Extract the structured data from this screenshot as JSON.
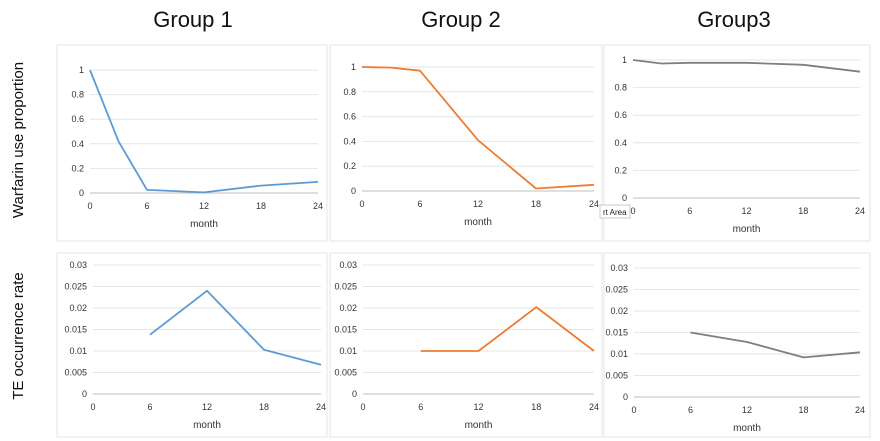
{
  "figure": {
    "group_titles": [
      "Group 1",
      "Group 2",
      "Group3"
    ],
    "row_labels": [
      "Warfarin use proportion",
      "TE occurrence rate"
    ],
    "tooltip": "rt Area"
  },
  "colors": {
    "group1": "#5b9bd5",
    "group2": "#ed7d31",
    "group3": "#7f7f7f"
  },
  "chart_data": [
    {
      "type": "line",
      "group": "Group 1",
      "metric": "Warfarin use proportion",
      "color": "#5b9bd5",
      "x": [
        0,
        3,
        6,
        12,
        18,
        24
      ],
      "y": [
        1.0,
        0.42,
        0.025,
        0.005,
        0.06,
        0.09
      ],
      "xticks": [
        0,
        6,
        12,
        18,
        24
      ],
      "xlabel": "month",
      "ylim": [
        0,
        1
      ],
      "yticks": [
        0,
        0.2,
        0.4,
        0.6,
        0.8,
        1
      ],
      "ytick_labels": [
        "0",
        "0.2",
        "0.4",
        "0.6",
        "0.8",
        "1"
      ]
    },
    {
      "type": "line",
      "group": "Group 2",
      "metric": "Warfarin use proportion",
      "color": "#ed7d31",
      "x": [
        0,
        3,
        6,
        12,
        18,
        24
      ],
      "y": [
        1.0,
        0.995,
        0.97,
        0.41,
        0.02,
        0.05
      ],
      "xticks": [
        0,
        6,
        12,
        18,
        24
      ],
      "xlabel": "month",
      "ylim": [
        0,
        1
      ],
      "yticks": [
        0,
        0.2,
        0.4,
        0.6,
        0.8,
        1
      ],
      "ytick_labels": [
        "0",
        "0.2",
        "0.4",
        "0.6",
        "0.8",
        "1"
      ]
    },
    {
      "type": "line",
      "group": "Group3",
      "metric": "Warfarin use proportion",
      "color": "#7f7f7f",
      "x": [
        0,
        3,
        6,
        12,
        18,
        24
      ],
      "y": [
        1.0,
        0.975,
        0.98,
        0.98,
        0.965,
        0.915
      ],
      "xticks": [
        0,
        6,
        12,
        18,
        24
      ],
      "xlabel": "month",
      "ylim": [
        0,
        1
      ],
      "yticks": [
        0,
        0.2,
        0.4,
        0.6,
        0.8,
        1
      ],
      "ytick_labels": [
        "0",
        "0.2",
        "0.4",
        "0.6",
        "0.8",
        "1"
      ]
    },
    {
      "type": "line",
      "group": "Group 1",
      "metric": "TE occurrence rate",
      "color": "#5b9bd5",
      "x": [
        6,
        12,
        18,
        24
      ],
      "y": [
        0.0138,
        0.024,
        0.0103,
        0.0068
      ],
      "xticks": [
        0,
        6,
        12,
        18,
        24
      ],
      "xlabel": "month",
      "ylim": [
        0,
        0.03
      ],
      "yticks": [
        0,
        0.005,
        0.01,
        0.015,
        0.02,
        0.025,
        0.03
      ],
      "ytick_labels": [
        "0",
        "0.005",
        "0.01",
        "0.015",
        "0.02",
        "0.025",
        "0.03"
      ]
    },
    {
      "type": "line",
      "group": "Group 2",
      "metric": "TE occurrence rate",
      "color": "#ed7d31",
      "x": [
        6,
        12,
        18,
        24
      ],
      "y": [
        0.01,
        0.01,
        0.0202,
        0.01
      ],
      "xticks": [
        0,
        6,
        12,
        18,
        24
      ],
      "xlabel": "month",
      "ylim": [
        0,
        0.03
      ],
      "yticks": [
        0,
        0.005,
        0.01,
        0.015,
        0.02,
        0.025,
        0.03
      ],
      "ytick_labels": [
        "0",
        "0.005",
        "0.01",
        "0.015",
        "0.02",
        "0.025",
        "0.03"
      ]
    },
    {
      "type": "line",
      "group": "Group3",
      "metric": "TE occurrence rate",
      "color": "#7f7f7f",
      "x": [
        6,
        12,
        18,
        24
      ],
      "y": [
        0.015,
        0.0128,
        0.0092,
        0.0104
      ],
      "xticks": [
        0,
        6,
        12,
        18,
        24
      ],
      "xlabel": "month",
      "ylim": [
        0,
        0.03
      ],
      "yticks": [
        0,
        0.005,
        0.01,
        0.015,
        0.02,
        0.025,
        0.03
      ],
      "ytick_labels": [
        "0",
        "0.005",
        "0.01",
        "0.015",
        "0.02",
        "0.025",
        "0.03"
      ]
    }
  ]
}
